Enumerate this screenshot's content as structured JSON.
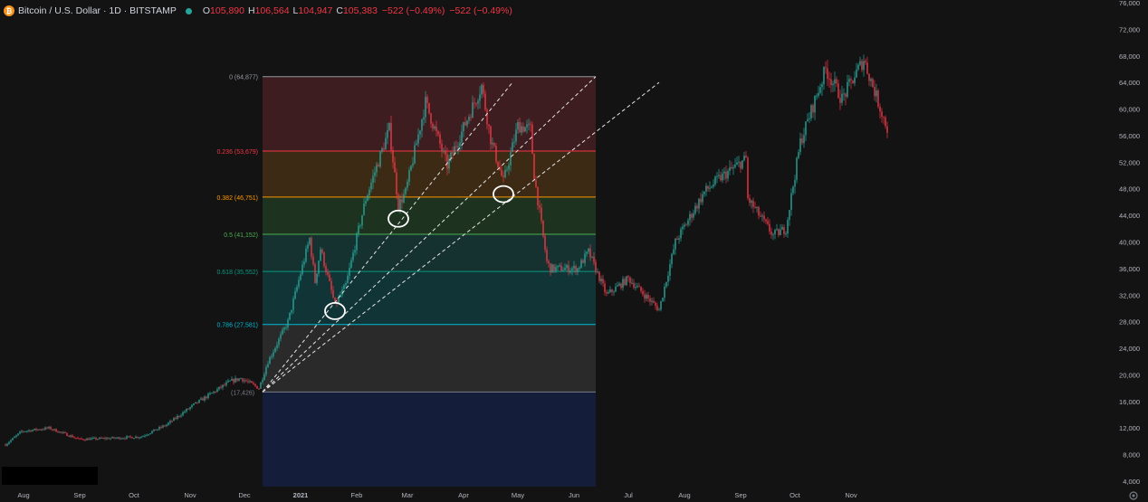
{
  "header": {
    "symbol": "Bitcoin / U.S. Dollar · 1D · BITSTAMP",
    "coin_glyph": "₿",
    "ohlc": [
      {
        "k": "O",
        "v": "105,890"
      },
      {
        "k": "H",
        "v": "106,564"
      },
      {
        "k": "L",
        "v": "104,947"
      },
      {
        "k": "C",
        "v": "105,383"
      }
    ],
    "change": "−522 (−0.49%)",
    "change2": "−522 (−0.49%)",
    "colors": {
      "up": "#26a69a",
      "down": "#f23645",
      "coin": "#f7931a"
    }
  },
  "chart_data": {
    "type": "candlestick",
    "title": "Bitcoin / U.S. Dollar · 1D · BITSTAMP",
    "x_ticks": [
      "Aug",
      "Sep",
      "Oct",
      "Nov",
      "Dec",
      "2021",
      "Feb",
      "Mar",
      "Apr",
      "May",
      "Jun",
      "Jul",
      "Aug",
      "Sep",
      "Oct",
      "Nov"
    ],
    "y_ticks": [
      "4,000",
      "8,000",
      "12,000",
      "16,000",
      "20,000",
      "24,000",
      "28,000",
      "32,000",
      "36,000",
      "40,000",
      "44,000",
      "48,000",
      "52,000",
      "56,000",
      "60,000",
      "64,000",
      "68,000",
      "72,000",
      "76,000"
    ],
    "ylim": [
      4000,
      76000
    ],
    "grid": false,
    "price_path": [
      [
        "2020-07-24",
        9500
      ],
      [
        "2020-08-02",
        11500
      ],
      [
        "2020-08-17",
        12000
      ],
      [
        "2020-09-03",
        10300
      ],
      [
        "2020-09-23",
        10500
      ],
      [
        "2020-10-07",
        10700
      ],
      [
        "2020-10-21",
        12500
      ],
      [
        "2020-11-05",
        15500
      ],
      [
        "2020-11-25",
        19000
      ],
      [
        "2020-12-01",
        19500
      ],
      [
        "2020-12-11",
        18000
      ],
      [
        "2020-12-16",
        22000
      ],
      [
        "2020-12-27",
        28000
      ],
      [
        "2021-01-08",
        40500
      ],
      [
        "2021-01-11",
        34000
      ],
      [
        "2021-01-14",
        39000
      ],
      [
        "2021-01-22",
        30500
      ],
      [
        "2021-01-28",
        33500
      ],
      [
        "2021-02-08",
        46500
      ],
      [
        "2021-02-21",
        57000
      ],
      [
        "2021-02-26",
        45500
      ],
      [
        "2021-03-02",
        47500
      ],
      [
        "2021-03-13",
        61000
      ],
      [
        "2021-03-25",
        51500
      ],
      [
        "2021-04-13",
        63500
      ],
      [
        "2021-04-18",
        55500
      ],
      [
        "2021-04-25",
        49000
      ],
      [
        "2021-05-03",
        57500
      ],
      [
        "2021-05-10",
        57000
      ],
      [
        "2021-05-12",
        50000
      ],
      [
        "2021-05-19",
        37000
      ],
      [
        "2021-05-21",
        36000
      ],
      [
        "2021-06-05",
        36000
      ],
      [
        "2021-06-11",
        38500
      ],
      [
        "2021-06-21",
        32000
      ],
      [
        "2021-07-03",
        34500
      ],
      [
        "2021-07-20",
        29800
      ],
      [
        "2021-07-29",
        40000
      ],
      [
        "2021-08-14",
        47500
      ],
      [
        "2021-08-22",
        49500
      ],
      [
        "2021-09-06",
        52500
      ],
      [
        "2021-09-07",
        46500
      ],
      [
        "2021-09-21",
        41000
      ],
      [
        "2021-09-28",
        42000
      ],
      [
        "2021-10-06",
        55000
      ],
      [
        "2021-10-20",
        66000
      ],
      [
        "2021-10-29",
        61500
      ],
      [
        "2021-11-10",
        67500
      ],
      [
        "2021-11-15",
        63500
      ],
      [
        "2021-11-23",
        57000
      ]
    ],
    "fib_levels": [
      {
        "ratio": 0,
        "price": 64877,
        "label": "0 (64,877)",
        "color": "#9598a1",
        "fill": "#3e1d20"
      },
      {
        "ratio": 0.236,
        "price": 53679,
        "label": "0.236 (53,679)",
        "color": "#f23645",
        "fill": "#3c2a15"
      },
      {
        "ratio": 0.382,
        "price": 46751,
        "label": "0.382 (46,751)",
        "color": "#ff9800",
        "fill": "#1d3320"
      },
      {
        "ratio": 0.5,
        "price": 41152,
        "label": "0.5 (41,152)",
        "color": "#4caf50",
        "fill": "#153230"
      },
      {
        "ratio": 0.618,
        "price": 35552,
        "label": "0.618 (35,552)",
        "color": "#089981",
        "fill": "#113436"
      },
      {
        "ratio": 0.786,
        "price": 27581,
        "label": "0.786 (27,581)",
        "color": "#00bcd4",
        "fill": "#2a2a2a"
      },
      {
        "ratio": 1,
        "price": 17426,
        "label": "(17,426)",
        "color": "#787b86",
        "fill": "#141d3a"
      }
    ],
    "fib_range": {
      "from": "2020-12-13",
      "to": "2021-06-15"
    },
    "trend_lines": [
      {
        "from": [
          "2020-12-13",
          17426
        ],
        "to": [
          "2021-04-30",
          64000
        ],
        "style": "dashed"
      },
      {
        "from": [
          "2020-12-13",
          17426
        ],
        "to": [
          "2021-06-15",
          64877
        ],
        "style": "dashed"
      },
      {
        "from": [
          "2020-12-13",
          17426
        ],
        "to": [
          "2021-07-20",
          64000
        ],
        "style": "dashed"
      }
    ],
    "highlight_circles": [
      {
        "date": "2021-01-22",
        "price": 29600
      },
      {
        "date": "2021-02-26",
        "price": 43500
      },
      {
        "date": "2021-04-25",
        "price": 47200
      }
    ]
  }
}
